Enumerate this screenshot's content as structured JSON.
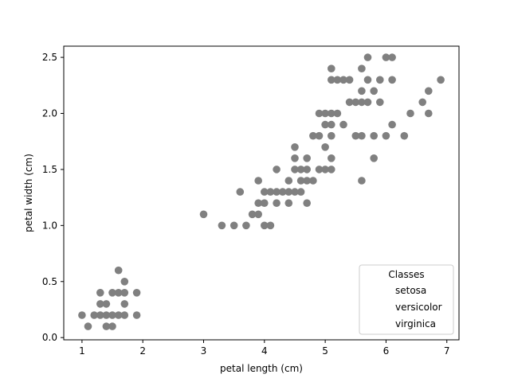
{
  "chart_data": {
    "type": "scatter",
    "xlabel": "petal length (cm)",
    "ylabel": "petal width (cm)",
    "xlim": [
      0.7,
      7.2
    ],
    "ylim": [
      -0.02,
      2.6
    ],
    "xticks": [
      1,
      2,
      3,
      4,
      5,
      6,
      7
    ],
    "xtick_labels": [
      "1",
      "2",
      "3",
      "4",
      "5",
      "6",
      "7"
    ],
    "yticks": [
      0.0,
      0.5,
      1.0,
      1.5,
      2.0,
      2.5
    ],
    "ytick_labels": [
      "0.0",
      "0.5",
      "1.0",
      "1.5",
      "2.0",
      "2.5"
    ],
    "grid": false,
    "marker_color": "#808080",
    "legend": {
      "title": "Classes",
      "entries": [
        "setosa",
        "versicolor",
        "virginica"
      ],
      "placement": "lower-right"
    },
    "points": [
      [
        1.0,
        0.2
      ],
      [
        1.1,
        0.1
      ],
      [
        1.2,
        0.2
      ],
      [
        1.3,
        0.2
      ],
      [
        1.3,
        0.3
      ],
      [
        1.3,
        0.4
      ],
      [
        1.4,
        0.1
      ],
      [
        1.4,
        0.2
      ],
      [
        1.4,
        0.3
      ],
      [
        1.5,
        0.1
      ],
      [
        1.5,
        0.2
      ],
      [
        1.5,
        0.4
      ],
      [
        1.6,
        0.2
      ],
      [
        1.6,
        0.4
      ],
      [
        1.6,
        0.6
      ],
      [
        1.7,
        0.2
      ],
      [
        1.7,
        0.3
      ],
      [
        1.7,
        0.4
      ],
      [
        1.7,
        0.5
      ],
      [
        1.9,
        0.2
      ],
      [
        1.9,
        0.4
      ],
      [
        3.0,
        1.1
      ],
      [
        3.3,
        1.0
      ],
      [
        3.5,
        1.0
      ],
      [
        3.6,
        1.3
      ],
      [
        3.7,
        1.0
      ],
      [
        3.8,
        1.1
      ],
      [
        3.9,
        1.1
      ],
      [
        3.9,
        1.2
      ],
      [
        3.9,
        1.4
      ],
      [
        4.0,
        1.0
      ],
      [
        4.0,
        1.2
      ],
      [
        4.0,
        1.3
      ],
      [
        4.1,
        1.0
      ],
      [
        4.1,
        1.3
      ],
      [
        4.2,
        1.2
      ],
      [
        4.2,
        1.3
      ],
      [
        4.2,
        1.5
      ],
      [
        4.3,
        1.3
      ],
      [
        4.4,
        1.2
      ],
      [
        4.4,
        1.3
      ],
      [
        4.4,
        1.4
      ],
      [
        4.5,
        1.3
      ],
      [
        4.5,
        1.5
      ],
      [
        4.5,
        1.6
      ],
      [
        4.5,
        1.7
      ],
      [
        4.6,
        1.3
      ],
      [
        4.6,
        1.4
      ],
      [
        4.6,
        1.5
      ],
      [
        4.7,
        1.2
      ],
      [
        4.7,
        1.4
      ],
      [
        4.7,
        1.5
      ],
      [
        4.7,
        1.6
      ],
      [
        4.8,
        1.4
      ],
      [
        4.8,
        1.8
      ],
      [
        4.9,
        1.5
      ],
      [
        4.9,
        1.8
      ],
      [
        4.9,
        2.0
      ],
      [
        5.0,
        1.5
      ],
      [
        5.0,
        1.7
      ],
      [
        5.0,
        1.9
      ],
      [
        5.0,
        2.0
      ],
      [
        5.1,
        1.5
      ],
      [
        5.1,
        1.6
      ],
      [
        5.1,
        1.8
      ],
      [
        5.1,
        1.9
      ],
      [
        5.1,
        2.0
      ],
      [
        5.1,
        2.3
      ],
      [
        5.1,
        2.4
      ],
      [
        5.2,
        2.0
      ],
      [
        5.2,
        2.3
      ],
      [
        5.3,
        1.9
      ],
      [
        5.3,
        2.3
      ],
      [
        5.4,
        2.1
      ],
      [
        5.4,
        2.3
      ],
      [
        5.5,
        1.8
      ],
      [
        5.5,
        2.1
      ],
      [
        5.6,
        1.4
      ],
      [
        5.6,
        1.8
      ],
      [
        5.6,
        2.1
      ],
      [
        5.6,
        2.2
      ],
      [
        5.6,
        2.4
      ],
      [
        5.7,
        2.1
      ],
      [
        5.7,
        2.3
      ],
      [
        5.7,
        2.5
      ],
      [
        5.8,
        1.6
      ],
      [
        5.8,
        1.8
      ],
      [
        5.8,
        2.2
      ],
      [
        5.9,
        2.1
      ],
      [
        5.9,
        2.3
      ],
      [
        6.0,
        1.8
      ],
      [
        6.0,
        2.5
      ],
      [
        6.1,
        1.9
      ],
      [
        6.1,
        2.3
      ],
      [
        6.1,
        2.5
      ],
      [
        6.3,
        1.8
      ],
      [
        6.4,
        2.0
      ],
      [
        6.6,
        2.1
      ],
      [
        6.7,
        2.0
      ],
      [
        6.7,
        2.2
      ],
      [
        6.9,
        2.3
      ]
    ]
  }
}
